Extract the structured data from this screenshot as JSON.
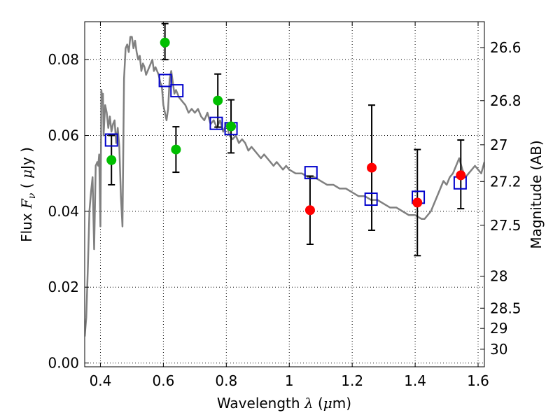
{
  "chart_data": {
    "type": "scatter",
    "xlabel_text": "Wavelength  ",
    "xlabel_lambda": "λ",
    "xlabel_unit_open": " (",
    "xlabel_mu": "μ",
    "xlabel_unit_close": "m)",
    "ylabel_text": "Flux  ",
    "ylabel_F": "F",
    "ylabel_nu": "ν",
    "ylabel_unit_open": "  ( ",
    "ylabel_mu": "μ",
    "ylabel_unit_close": "Jy )",
    "y2label": "Magnitude (AB)",
    "xlim": [
      0.35,
      1.62
    ],
    "ylim": [
      -0.001,
      0.09
    ],
    "grid": true,
    "x_ticks": [
      0.4,
      0.6,
      0.8,
      1.0,
      1.2,
      1.4,
      1.6
    ],
    "x_tick_labels": [
      "0.4",
      "0.6",
      "0.8",
      "1",
      "1.2",
      "1.4",
      "1.6"
    ],
    "y_ticks": [
      0.0,
      0.02,
      0.04,
      0.06,
      0.08
    ],
    "y_tick_labels": [
      "0.00",
      "0.02",
      "0.04",
      "0.06",
      "0.08"
    ],
    "y2_ticks": [
      26.6,
      26.8,
      27.0,
      27.2,
      27.5,
      28.0,
      28.5,
      29.0,
      30.0
    ],
    "y2_tick_labels": [
      "26.6",
      "26.8",
      "27",
      "27.2",
      "27.5",
      "28",
      "28.5",
      "29",
      "30"
    ],
    "colors": {
      "model": "#808080",
      "green": "#00bf00",
      "red": "#ff0000",
      "box": "#0000cc",
      "errorbar": "#000000"
    },
    "model_sed": {
      "x": [
        0.35,
        0.355,
        0.36,
        0.365,
        0.37,
        0.375,
        0.38,
        0.385,
        0.39,
        0.393,
        0.396,
        0.4,
        0.403,
        0.405,
        0.408,
        0.41,
        0.415,
        0.42,
        0.425,
        0.43,
        0.435,
        0.44,
        0.445,
        0.45,
        0.455,
        0.46,
        0.465,
        0.47,
        0.475,
        0.48,
        0.485,
        0.49,
        0.495,
        0.5,
        0.505,
        0.51,
        0.515,
        0.52,
        0.525,
        0.53,
        0.535,
        0.54,
        0.545,
        0.55,
        0.555,
        0.56,
        0.565,
        0.57,
        0.575,
        0.58,
        0.585,
        0.59,
        0.595,
        0.6,
        0.605,
        0.61,
        0.615,
        0.62,
        0.625,
        0.63,
        0.635,
        0.64,
        0.65,
        0.66,
        0.67,
        0.68,
        0.69,
        0.7,
        0.71,
        0.72,
        0.73,
        0.74,
        0.75,
        0.76,
        0.77,
        0.78,
        0.79,
        0.8,
        0.81,
        0.82,
        0.83,
        0.84,
        0.85,
        0.86,
        0.87,
        0.88,
        0.89,
        0.9,
        0.91,
        0.92,
        0.93,
        0.94,
        0.95,
        0.96,
        0.97,
        0.98,
        0.99,
        1.0,
        1.02,
        1.04,
        1.06,
        1.08,
        1.1,
        1.12,
        1.14,
        1.16,
        1.18,
        1.2,
        1.22,
        1.24,
        1.26,
        1.28,
        1.3,
        1.32,
        1.34,
        1.36,
        1.38,
        1.4,
        1.42,
        1.43,
        1.45,
        1.47,
        1.49,
        1.5,
        1.51,
        1.52,
        1.53,
        1.54,
        1.55,
        1.56,
        1.57,
        1.58,
        1.59,
        1.6,
        1.61,
        1.62
      ],
      "y": [
        0.007,
        0.012,
        0.025,
        0.04,
        0.045,
        0.049,
        0.03,
        0.052,
        0.053,
        0.052,
        0.055,
        0.036,
        0.072,
        0.07,
        0.071,
        0.06,
        0.068,
        0.066,
        0.062,
        0.065,
        0.061,
        0.063,
        0.064,
        0.058,
        0.062,
        0.057,
        0.044,
        0.036,
        0.075,
        0.083,
        0.084,
        0.082,
        0.086,
        0.086,
        0.083,
        0.085,
        0.082,
        0.08,
        0.081,
        0.077,
        0.079,
        0.078,
        0.076,
        0.077,
        0.078,
        0.079,
        0.08,
        0.077,
        0.078,
        0.077,
        0.076,
        0.074,
        0.073,
        0.068,
        0.066,
        0.064,
        0.067,
        0.075,
        0.077,
        0.074,
        0.071,
        0.072,
        0.07,
        0.069,
        0.068,
        0.066,
        0.067,
        0.066,
        0.067,
        0.065,
        0.064,
        0.066,
        0.063,
        0.064,
        0.062,
        0.064,
        0.061,
        0.063,
        0.06,
        0.059,
        0.06,
        0.058,
        0.059,
        0.058,
        0.056,
        0.057,
        0.056,
        0.055,
        0.054,
        0.055,
        0.054,
        0.053,
        0.052,
        0.053,
        0.052,
        0.051,
        0.052,
        0.051,
        0.05,
        0.05,
        0.049,
        0.049,
        0.048,
        0.047,
        0.047,
        0.046,
        0.046,
        0.045,
        0.044,
        0.044,
        0.043,
        0.043,
        0.042,
        0.041,
        0.041,
        0.04,
        0.039,
        0.039,
        0.038,
        0.038,
        0.04,
        0.044,
        0.048,
        0.047,
        0.049,
        0.05,
        0.052,
        0.054,
        0.051,
        0.049,
        0.05,
        0.051,
        0.052,
        0.051,
        0.05,
        0.053
      ]
    },
    "green_points": [
      {
        "x": 0.435,
        "y": 0.0535,
        "err_lo": 0.0065,
        "err_hi": 0.0065
      },
      {
        "x": 0.605,
        "y": 0.0845,
        "err_lo": 0.0045,
        "err_hi": 0.005
      },
      {
        "x": 0.64,
        "y": 0.0563,
        "err_lo": 0.006,
        "err_hi": 0.006
      },
      {
        "x": 0.773,
        "y": 0.0692,
        "err_lo": 0.007,
        "err_hi": 0.007
      },
      {
        "x": 0.815,
        "y": 0.0624,
        "err_lo": 0.007,
        "err_hi": 0.007
      }
    ],
    "red_points": [
      {
        "x": 1.066,
        "y": 0.0403,
        "err_lo": 0.009,
        "err_hi": 0.009
      },
      {
        "x": 1.262,
        "y": 0.0515,
        "err_lo": 0.0165,
        "err_hi": 0.0165
      },
      {
        "x": 1.407,
        "y": 0.0423,
        "err_lo": 0.014,
        "err_hi": 0.014
      },
      {
        "x": 1.545,
        "y": 0.0495,
        "err_lo": 0.0088,
        "err_hi": 0.0093
      }
    ],
    "model_boxes": [
      {
        "x": 0.435,
        "y": 0.0588
      },
      {
        "x": 0.606,
        "y": 0.0745
      },
      {
        "x": 0.643,
        "y": 0.0718
      },
      {
        "x": 0.768,
        "y": 0.0632
      },
      {
        "x": 0.815,
        "y": 0.0618
      },
      {
        "x": 1.069,
        "y": 0.0502
      },
      {
        "x": 1.26,
        "y": 0.0432
      },
      {
        "x": 1.41,
        "y": 0.0437
      },
      {
        "x": 1.543,
        "y": 0.0475
      }
    ]
  }
}
